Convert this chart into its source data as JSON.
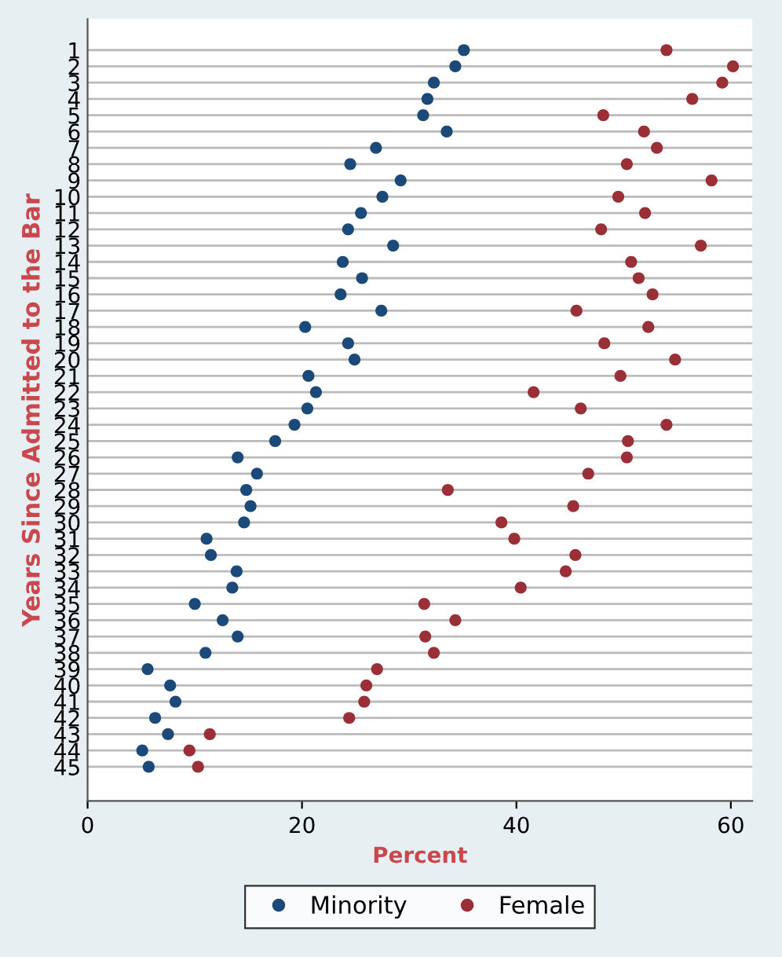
{
  "chart_data": {
    "type": "scatter",
    "orientation": "horizontal",
    "xlabel": "Percent",
    "ylabel": "Years Since Admitted to the Bar",
    "categories": [
      "1",
      "2",
      "3",
      "4",
      "5",
      "6",
      "7",
      "8",
      "9",
      "10",
      "11",
      "12",
      "13",
      "14",
      "15",
      "16",
      "17",
      "18",
      "19",
      "20",
      "21",
      "22",
      "23",
      "24",
      "25",
      "26",
      "27",
      "28",
      "29",
      "30",
      "31",
      "32",
      "33",
      "34",
      "35",
      "36",
      "37",
      "38",
      "39",
      "40",
      "41",
      "42",
      "43",
      "44",
      "45"
    ],
    "series": [
      {
        "name": "Minority",
        "color": "#1b4a7a",
        "values": [
          35.1,
          34.3,
          32.3,
          31.7,
          31.3,
          33.5,
          26.9,
          24.5,
          29.2,
          27.5,
          25.5,
          24.3,
          28.5,
          23.8,
          25.6,
          23.6,
          27.4,
          20.3,
          24.3,
          24.9,
          20.6,
          21.3,
          20.5,
          19.3,
          17.5,
          14.0,
          15.8,
          14.8,
          15.2,
          14.6,
          11.1,
          11.5,
          13.9,
          13.5,
          10.0,
          12.6,
          14.0,
          11.0,
          5.6,
          7.7,
          8.2,
          6.3,
          7.5,
          5.1,
          5.7
        ]
      },
      {
        "name": "Female",
        "color": "#9a2f37",
        "values": [
          54.0,
          60.2,
          59.2,
          56.4,
          48.1,
          51.9,
          53.1,
          50.3,
          58.2,
          49.5,
          52.0,
          47.9,
          57.2,
          50.7,
          51.4,
          52.7,
          45.6,
          52.3,
          48.2,
          54.8,
          49.7,
          41.6,
          46.0,
          54.0,
          50.4,
          50.3,
          46.7,
          33.6,
          45.3,
          38.6,
          39.8,
          45.5,
          44.6,
          40.4,
          31.4,
          34.3,
          31.5,
          32.3,
          27.0,
          26.0,
          25.8,
          24.4,
          11.4,
          9.5,
          10.3
        ]
      }
    ],
    "xlim": [
      0,
      62
    ],
    "xticks": [
      0,
      20,
      40,
      60
    ],
    "grid": "y",
    "legend": "bottom",
    "marker": "circle"
  }
}
